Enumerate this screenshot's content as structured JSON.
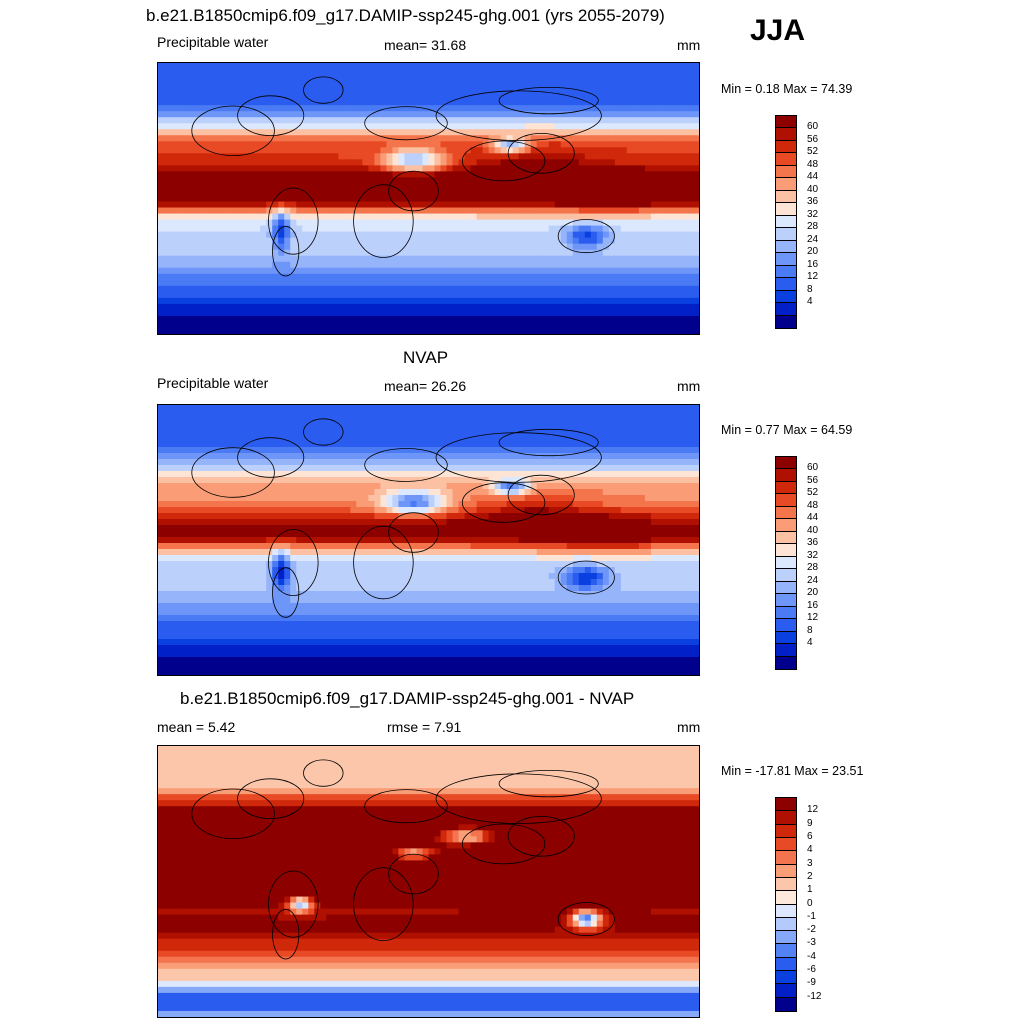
{
  "season": "JJA",
  "palette_seq": [
    "#00008c",
    "#0220c8",
    "#0a40e0",
    "#2a5cf0",
    "#4a7af4",
    "#6e96f8",
    "#96b4fa",
    "#bcd0fc",
    "#dce8fe",
    "#fde4d4",
    "#fcc0a2",
    "#fa9c76",
    "#f4744c",
    "#e84a26",
    "#d0280a",
    "#b01000",
    "#8c0000"
  ],
  "palette_diff": [
    "#00008c",
    "#0220c8",
    "#0a40e0",
    "#2a5cf0",
    "#5282f4",
    "#86a8f8",
    "#b4cafc",
    "#dde8fe",
    "#fde8dc",
    "#fcc6aa",
    "#fa9e78",
    "#f47450",
    "#e84a26",
    "#d0280a",
    "#b01000",
    "#8c0000"
  ],
  "panels": [
    {
      "title": "b.e21.B1850cmip6.f09_g17.DAMIP-ssp245-ghg.001 (yrs 2055-2079)",
      "left_label": "Precipitable water",
      "center_label": "mean=  31.68",
      "units": "mm",
      "minmax": "Min =   0.18 Max =  74.39",
      "levels": [
        "60",
        "56",
        "52",
        "48",
        "44",
        "40",
        "36",
        "32",
        "28",
        "24",
        "20",
        "16",
        "12",
        "8",
        "4"
      ],
      "scale": "seq",
      "field": {
        "base": 3,
        "trop": 16,
        "mid_n": 10,
        "mid_s": 8,
        "asia": 3,
        "dry": 5
      }
    },
    {
      "title": "NVAP",
      "left_label": "Precipitable water",
      "center_label": "mean=  26.26",
      "units": "mm",
      "minmax": "Min =   0.77 Max =  64.59",
      "levels": [
        "60",
        "56",
        "52",
        "48",
        "44",
        "40",
        "36",
        "32",
        "28",
        "24",
        "20",
        "16",
        "12",
        "8",
        "4"
      ],
      "scale": "seq",
      "field": {
        "base": 3,
        "trop": 13,
        "mid_n": 8,
        "mid_s": 7,
        "asia": 3,
        "dry": 5
      }
    },
    {
      "title": "b.e21.B1850cmip6.f09_g17.DAMIP-ssp245-ghg.001 - NVAP",
      "left_label": "mean =   5.42",
      "center_label": "rmse =    7.91",
      "units": "mm",
      "minmax": "Min = -17.81 Max =  23.51",
      "levels": [
        "12",
        "9",
        "6",
        "4",
        "3",
        "2",
        "1",
        "0",
        "-1",
        "-2",
        "-3",
        "-4",
        "-6",
        "-9",
        "-12"
      ],
      "scale": "diff",
      "field": {
        "base": 9,
        "trop": 15,
        "mid_n": 12,
        "mid_s": 10,
        "asia": 1,
        "dry": 2
      }
    }
  ]
}
